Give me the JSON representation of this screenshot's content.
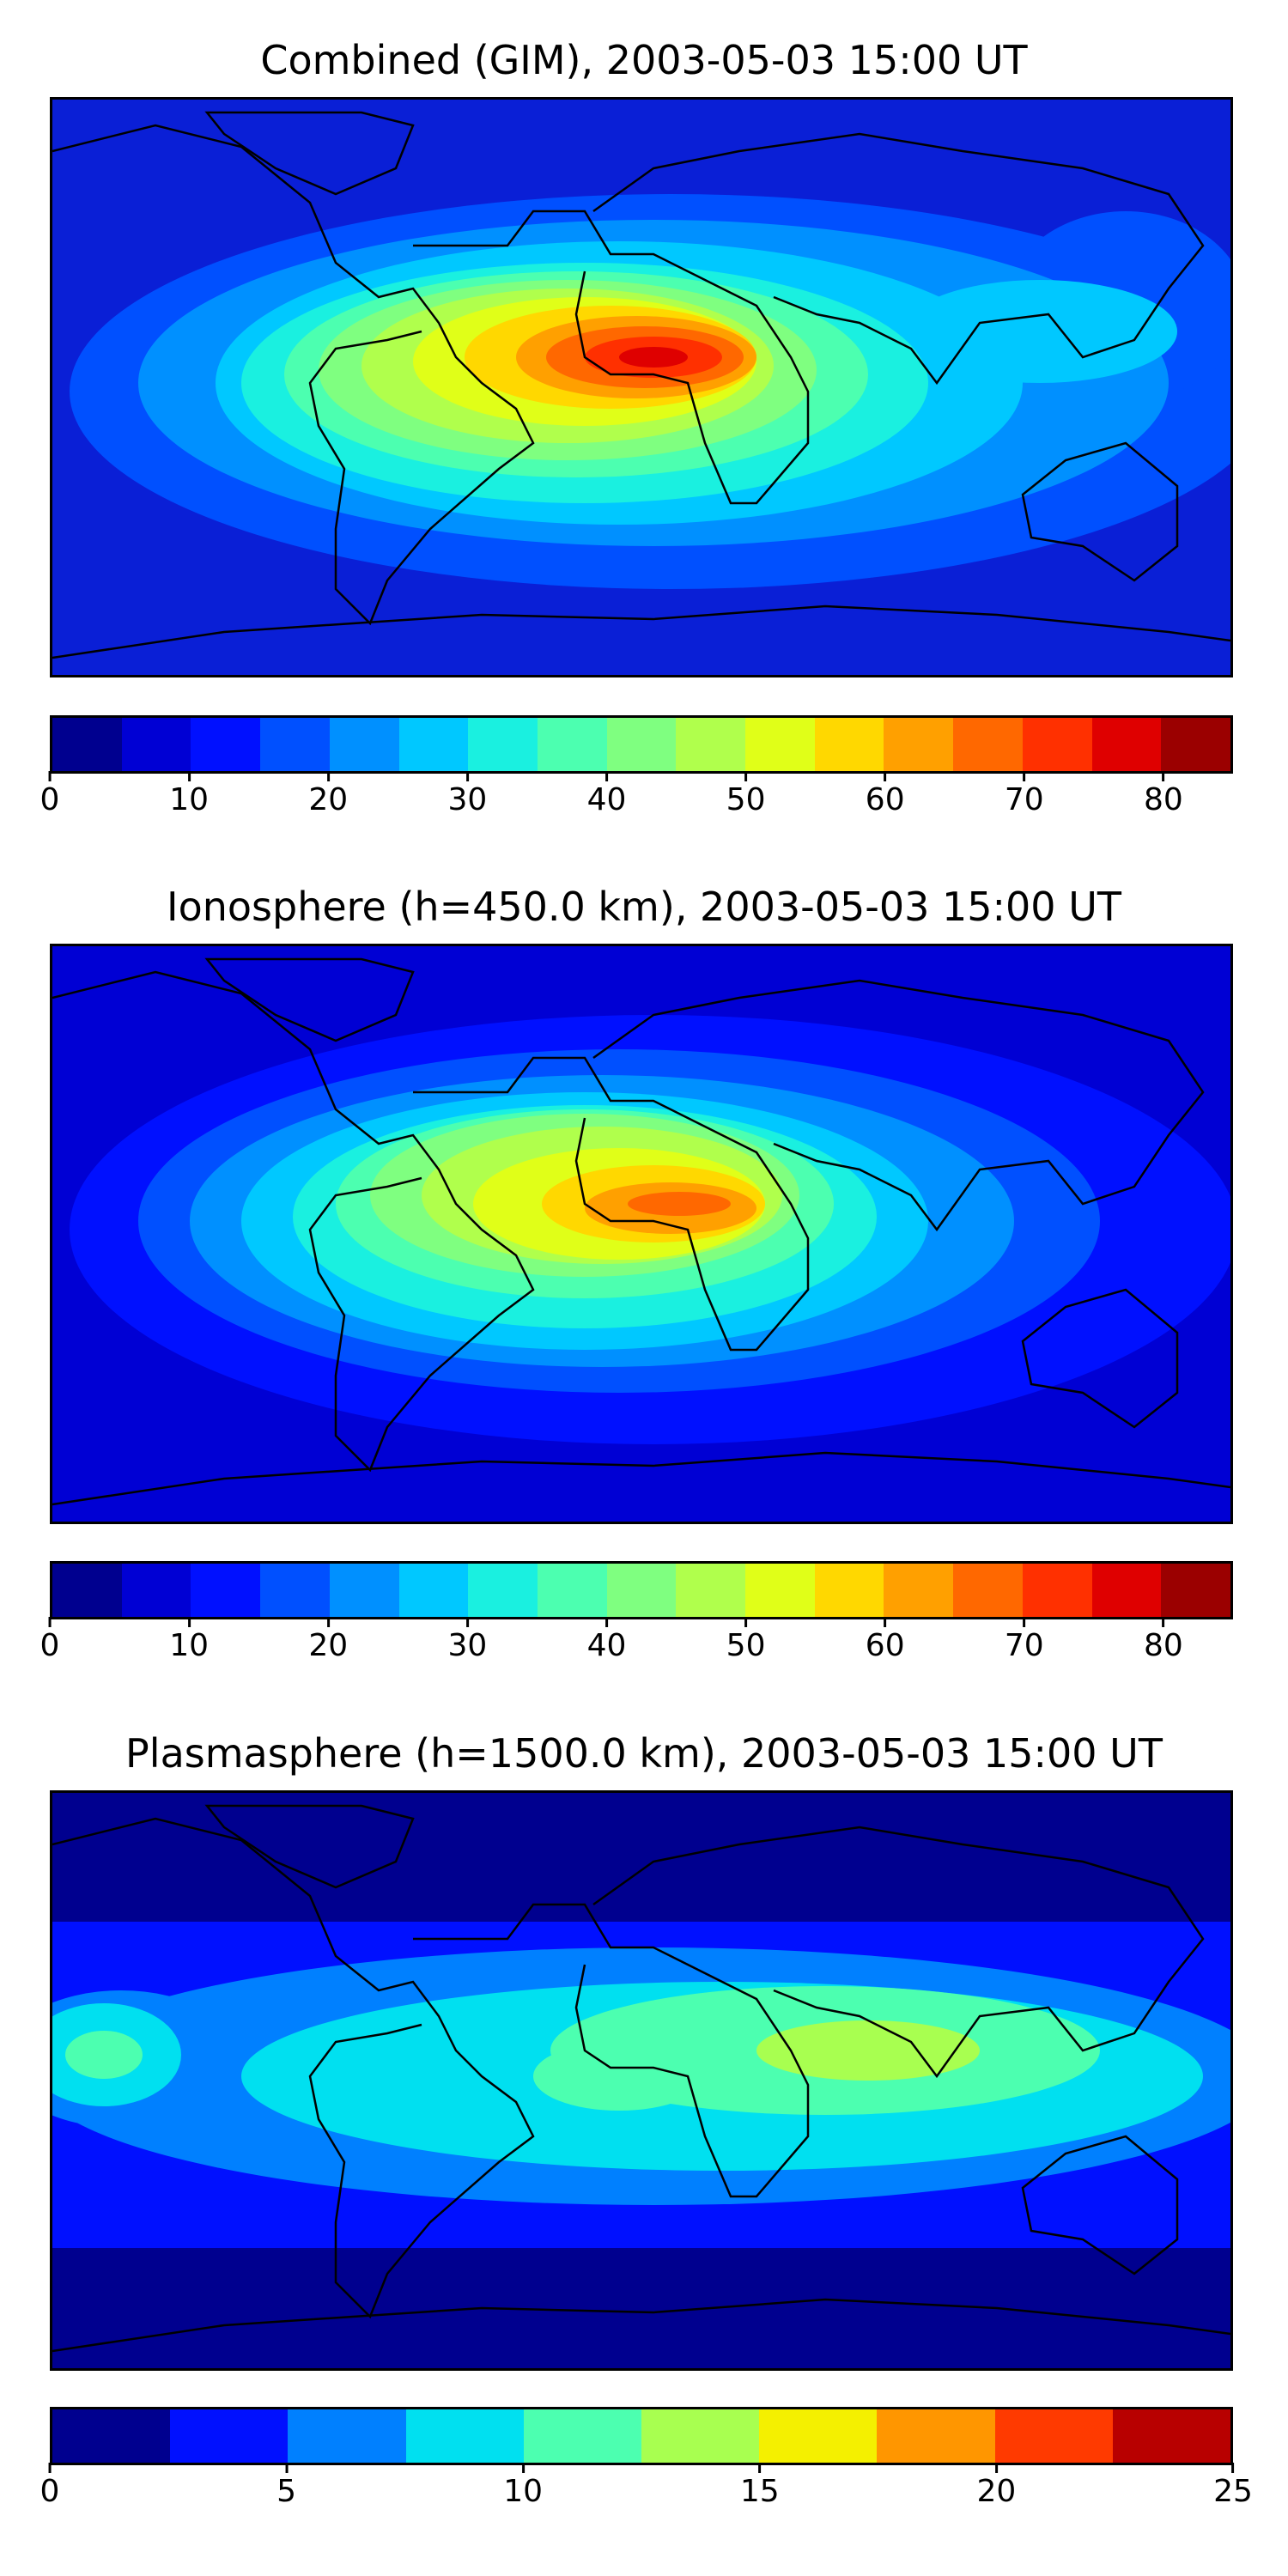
{
  "panels": [
    {
      "title": "Combined (GIM), 2003-05-03 15:00 UT",
      "colorbar": {
        "min": 0,
        "max": 85,
        "colors": [
          "#00008f",
          "#0000d4",
          "#0010ff",
          "#0050ff",
          "#0090ff",
          "#00c8ff",
          "#1af0e0",
          "#4cffb0",
          "#7fff80",
          "#b0ff4c",
          "#e0ff18",
          "#ffd800",
          "#ffa000",
          "#ff6800",
          "#ff3000",
          "#df0000",
          "#9b0000"
        ],
        "ticks": [
          "0",
          "10",
          "20",
          "30",
          "40",
          "50",
          "60",
          "70",
          "80"
        ]
      }
    },
    {
      "title": "Ionosphere  (h=450.0 km), 2003-05-03 15:00 UT",
      "colorbar": {
        "min": 0,
        "max": 85,
        "colors": [
          "#00008f",
          "#0000d4",
          "#0010ff",
          "#0050ff",
          "#0090ff",
          "#00c8ff",
          "#1af0e0",
          "#4cffb0",
          "#7fff80",
          "#b0ff4c",
          "#e0ff18",
          "#ffd800",
          "#ffa000",
          "#ff6800",
          "#ff3000",
          "#df0000",
          "#9b0000"
        ],
        "ticks": [
          "0",
          "10",
          "20",
          "30",
          "40",
          "50",
          "60",
          "70",
          "80"
        ]
      }
    },
    {
      "title": "Plasmasphere (h=1500.0 km), 2003-05-03 15:00 UT",
      "colorbar": {
        "min": 0,
        "max": 25,
        "colors": [
          "#00008f",
          "#0010ff",
          "#0080ff",
          "#00e0f0",
          "#4cffb0",
          "#a8ff50",
          "#f4f000",
          "#ff9600",
          "#ff3a00",
          "#b80000"
        ],
        "ticks": [
          "0",
          "5",
          "10",
          "15",
          "20",
          "25"
        ]
      }
    }
  ]
}
